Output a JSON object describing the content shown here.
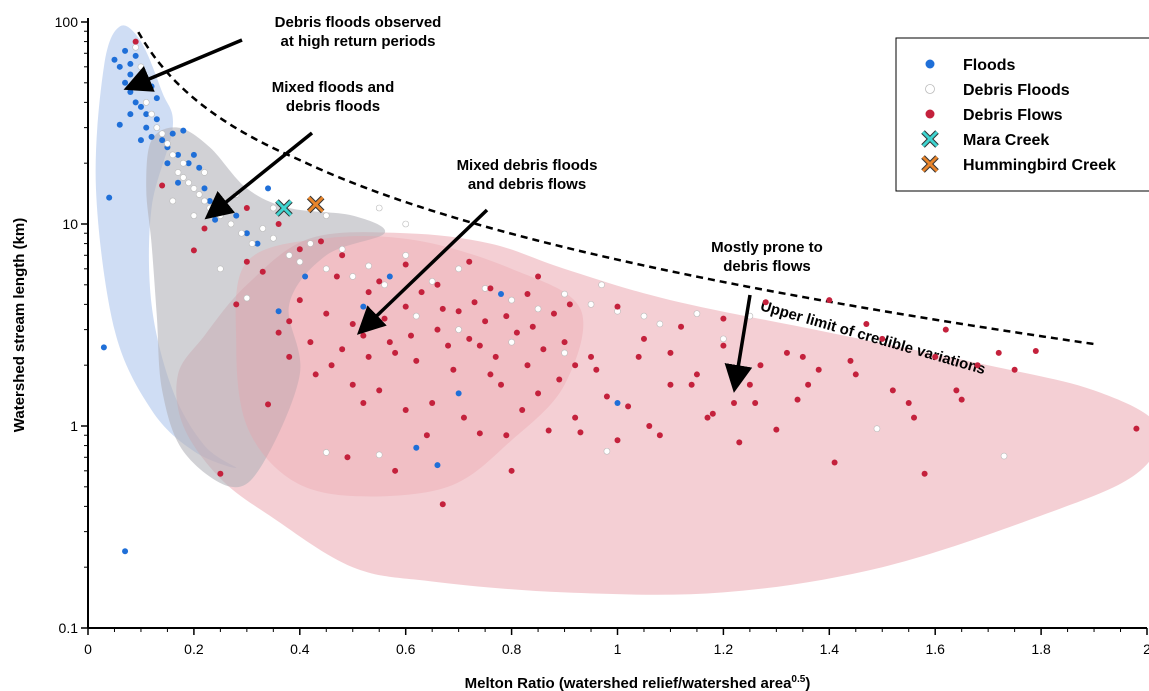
{
  "chart_data": {
    "type": "scatter",
    "xlabel": "Melton Ratio (watershed relief/watershed area",
    "xlabel_sup": "0.5",
    "xlabel_end": ")",
    "ylabel": "Watershed stream length (km)",
    "xlim": [
      0,
      2
    ],
    "ylim": [
      0.1,
      100
    ],
    "y_scale": "log",
    "x_ticks": [
      0,
      0.2,
      0.4,
      0.6,
      0.8,
      1,
      1.2,
      1.4,
      1.6,
      1.8,
      2
    ],
    "x_tick_labels": [
      "0",
      "0.2",
      "0.4",
      "0.6",
      "0.8",
      "1",
      "1.2",
      "1.4",
      "1.6",
      "1.8",
      "2"
    ],
    "y_ticks": [
      0.1,
      1,
      10,
      100
    ],
    "y_tick_labels": [
      "0.1",
      "1",
      "10",
      "100"
    ],
    "grid": false,
    "legend_position": "top-right",
    "legend": [
      {
        "label": "Floods",
        "marker": "dot",
        "color": "#1f6fd8"
      },
      {
        "label": "Debris Floods",
        "marker": "dot",
        "color": "#ffffff"
      },
      {
        "label": "Debris Flows",
        "marker": "dot",
        "color": "#c4213c"
      },
      {
        "label": "Mara Creek",
        "marker": "x",
        "color": "#3fd4d0"
      },
      {
        "label": "Hummingbird Creek",
        "marker": "x",
        "color": "#e8842a"
      }
    ],
    "series": [
      {
        "name": "Floods",
        "color": "#1f6fd8",
        "points": [
          [
            0.03,
            2.45
          ],
          [
            0.04,
            13.5
          ],
          [
            0.07,
            0.24
          ],
          [
            0.05,
            65
          ],
          [
            0.06,
            60
          ],
          [
            0.07,
            50
          ],
          [
            0.07,
            72
          ],
          [
            0.08,
            55
          ],
          [
            0.08,
            45
          ],
          [
            0.09,
            40
          ],
          [
            0.1,
            38
          ],
          [
            0.11,
            35
          ],
          [
            0.08,
            62
          ],
          [
            0.09,
            68
          ],
          [
            0.1,
            52
          ],
          [
            0.12,
            48
          ],
          [
            0.13,
            42
          ],
          [
            0.11,
            30
          ],
          [
            0.12,
            27
          ],
          [
            0.14,
            26
          ],
          [
            0.15,
            24
          ],
          [
            0.16,
            28
          ],
          [
            0.17,
            22
          ],
          [
            0.18,
            29
          ],
          [
            0.19,
            20
          ],
          [
            0.2,
            22
          ],
          [
            0.1,
            26
          ],
          [
            0.13,
            33
          ],
          [
            0.15,
            20
          ],
          [
            0.17,
            16
          ],
          [
            0.21,
            19
          ],
          [
            0.22,
            15
          ],
          [
            0.23,
            13
          ],
          [
            0.24,
            10.5
          ],
          [
            0.26,
            12
          ],
          [
            0.28,
            11
          ],
          [
            0.3,
            9
          ],
          [
            0.32,
            8
          ],
          [
            0.34,
            15
          ],
          [
            0.36,
            3.7
          ],
          [
            0.41,
            5.5
          ],
          [
            0.52,
            3.9
          ],
          [
            0.57,
            5.5
          ],
          [
            0.62,
            0.78
          ],
          [
            0.66,
            0.64
          ],
          [
            0.7,
            1.45
          ],
          [
            0.78,
            4.5
          ],
          [
            1.0,
            1.3
          ],
          [
            0.06,
            31
          ],
          [
            0.08,
            35
          ]
        ]
      },
      {
        "name": "Debris Floods",
        "color": "#ffffff",
        "points": [
          [
            0.09,
            75
          ],
          [
            0.1,
            60
          ],
          [
            0.11,
            40
          ],
          [
            0.12,
            35
          ],
          [
            0.13,
            30
          ],
          [
            0.14,
            28
          ],
          [
            0.15,
            25
          ],
          [
            0.16,
            22
          ],
          [
            0.17,
            18
          ],
          [
            0.18,
            17
          ],
          [
            0.19,
            16
          ],
          [
            0.2,
            15
          ],
          [
            0.21,
            14
          ],
          [
            0.22,
            13
          ],
          [
            0.23,
            12
          ],
          [
            0.25,
            11
          ],
          [
            0.27,
            10
          ],
          [
            0.29,
            9
          ],
          [
            0.31,
            8
          ],
          [
            0.33,
            9.5
          ],
          [
            0.35,
            8.5
          ],
          [
            0.38,
            7
          ],
          [
            0.4,
            6.5
          ],
          [
            0.42,
            8
          ],
          [
            0.45,
            6
          ],
          [
            0.48,
            7.5
          ],
          [
            0.5,
            5.5
          ],
          [
            0.53,
            6.2
          ],
          [
            0.56,
            5
          ],
          [
            0.6,
            7
          ],
          [
            0.65,
            5.2
          ],
          [
            0.7,
            6
          ],
          [
            0.75,
            4.8
          ],
          [
            0.8,
            4.2
          ],
          [
            0.85,
            3.8
          ],
          [
            0.9,
            4.5
          ],
          [
            0.95,
            4
          ],
          [
            1.0,
            3.7
          ],
          [
            1.05,
            3.5
          ],
          [
            1.15,
            3.6
          ],
          [
            1.25,
            3.5
          ],
          [
            0.3,
            4.3
          ],
          [
            0.25,
            6
          ],
          [
            0.22,
            18
          ],
          [
            0.18,
            20
          ],
          [
            0.16,
            13
          ],
          [
            0.2,
            11
          ],
          [
            0.28,
            14
          ],
          [
            0.35,
            12
          ],
          [
            0.45,
            11
          ],
          [
            0.55,
            12
          ],
          [
            0.6,
            10
          ],
          [
            0.62,
            3.5
          ],
          [
            0.7,
            3
          ],
          [
            0.8,
            2.6
          ],
          [
            0.9,
            2.3
          ],
          [
            0.97,
            5
          ],
          [
            1.08,
            3.2
          ],
          [
            1.2,
            2.7
          ],
          [
            1.49,
            0.97
          ],
          [
            1.73,
            0.71
          ],
          [
            0.55,
            0.72
          ],
          [
            0.45,
            0.74
          ],
          [
            0.98,
            0.75
          ]
        ]
      },
      {
        "name": "Debris Flows",
        "color": "#c4213c",
        "points": [
          [
            0.09,
            80
          ],
          [
            0.14,
            15.5
          ],
          [
            0.2,
            7.4
          ],
          [
            0.22,
            9.5
          ],
          [
            0.25,
            0.58
          ],
          [
            0.28,
            4
          ],
          [
            0.3,
            6.5
          ],
          [
            0.34,
            1.28
          ],
          [
            0.36,
            2.9
          ],
          [
            0.38,
            3.3
          ],
          [
            0.4,
            4.2
          ],
          [
            0.42,
            2.6
          ],
          [
            0.45,
            3.6
          ],
          [
            0.47,
            5.5
          ],
          [
            0.48,
            2.4
          ],
          [
            0.5,
            3.2
          ],
          [
            0.52,
            2.8
          ],
          [
            0.53,
            4.6
          ],
          [
            0.55,
            1.5
          ],
          [
            0.56,
            3.4
          ],
          [
            0.58,
            2.3
          ],
          [
            0.6,
            3.9
          ],
          [
            0.62,
            2.1
          ],
          [
            0.63,
            4.6
          ],
          [
            0.65,
            1.3
          ],
          [
            0.66,
            3.0
          ],
          [
            0.67,
            0.41
          ],
          [
            0.68,
            2.5
          ],
          [
            0.7,
            3.7
          ],
          [
            0.71,
            1.1
          ],
          [
            0.72,
            2.7
          ],
          [
            0.73,
            4.1
          ],
          [
            0.74,
            0.92
          ],
          [
            0.75,
            3.3
          ],
          [
            0.76,
            1.8
          ],
          [
            0.77,
            2.2
          ],
          [
            0.78,
            1.6
          ],
          [
            0.79,
            3.5
          ],
          [
            0.8,
            0.6
          ],
          [
            0.81,
            2.9
          ],
          [
            0.82,
            1.2
          ],
          [
            0.83,
            2.0
          ],
          [
            0.84,
            3.1
          ],
          [
            0.85,
            1.45
          ],
          [
            0.86,
            2.4
          ],
          [
            0.87,
            0.95
          ],
          [
            0.88,
            3.6
          ],
          [
            0.89,
            1.7
          ],
          [
            0.9,
            2.6
          ],
          [
            0.91,
            4.0
          ],
          [
            0.92,
            1.1
          ],
          [
            0.93,
            0.93
          ],
          [
            0.95,
            2.2
          ],
          [
            0.96,
            1.9
          ],
          [
            0.98,
            1.4
          ],
          [
            1.0,
            3.9
          ],
          [
            1.02,
            1.25
          ],
          [
            1.05,
            2.7
          ],
          [
            1.06,
            1.0
          ],
          [
            1.08,
            0.9
          ],
          [
            1.1,
            2.3
          ],
          [
            1.12,
            3.1
          ],
          [
            1.14,
            1.6
          ],
          [
            1.15,
            1.8
          ],
          [
            1.17,
            1.1
          ],
          [
            1.2,
            2.5
          ],
          [
            1.22,
            1.3
          ],
          [
            1.23,
            0.83
          ],
          [
            1.25,
            1.6
          ],
          [
            1.27,
            2.0
          ],
          [
            1.28,
            4.1
          ],
          [
            1.3,
            0.96
          ],
          [
            1.32,
            2.3
          ],
          [
            1.34,
            1.35
          ],
          [
            1.36,
            1.6
          ],
          [
            1.38,
            1.9
          ],
          [
            1.4,
            4.2
          ],
          [
            1.41,
            0.66
          ],
          [
            1.44,
            2.1
          ],
          [
            1.47,
            3.2
          ],
          [
            1.5,
            2.7
          ],
          [
            1.52,
            1.5
          ],
          [
            1.56,
            1.1
          ],
          [
            1.58,
            0.58
          ],
          [
            1.6,
            2.2
          ],
          [
            1.62,
            3.0
          ],
          [
            1.64,
            1.5
          ],
          [
            1.65,
            1.35
          ],
          [
            1.68,
            2.0
          ],
          [
            1.72,
            2.3
          ],
          [
            1.75,
            1.9
          ],
          [
            1.79,
            2.35
          ],
          [
            1.98,
            0.97
          ],
          [
            0.57,
            2.6
          ],
          [
            0.6,
            1.2
          ],
          [
            0.64,
            0.9
          ],
          [
            0.69,
            1.9
          ],
          [
            0.58,
            0.6
          ],
          [
            0.52,
            1.3
          ],
          [
            0.49,
            0.7
          ],
          [
            0.55,
            5.2
          ],
          [
            0.48,
            7
          ],
          [
            0.44,
            8.2
          ],
          [
            0.6,
            6.3
          ],
          [
            0.66,
            5
          ],
          [
            0.72,
            6.5
          ],
          [
            0.76,
            4.8
          ],
          [
            0.85,
            5.5
          ],
          [
            0.4,
            7.5
          ],
          [
            0.36,
            10
          ],
          [
            0.3,
            12
          ],
          [
            0.33,
            5.8
          ],
          [
            1.2,
            3.4
          ],
          [
            0.38,
            2.2
          ],
          [
            0.43,
            1.8
          ],
          [
            0.46,
            2.0
          ],
          [
            0.5,
            1.6
          ],
          [
            0.53,
            2.2
          ],
          [
            0.61,
            2.8
          ],
          [
            0.67,
            3.8
          ],
          [
            0.74,
            2.5
          ],
          [
            0.79,
            0.9
          ],
          [
            0.83,
            4.5
          ],
          [
            0.92,
            2.0
          ],
          [
            1.0,
            0.85
          ],
          [
            1.04,
            2.2
          ],
          [
            1.1,
            1.6
          ],
          [
            1.18,
            1.15
          ],
          [
            1.26,
            1.3
          ],
          [
            1.35,
            2.2
          ],
          [
            1.45,
            1.8
          ],
          [
            1.55,
            1.3
          ]
        ]
      },
      {
        "name": "Mara Creek",
        "color": "#3fd4d0",
        "marker": "x",
        "points": [
          [
            0.37,
            12
          ]
        ]
      },
      {
        "name": "Hummingbird Creek",
        "color": "#e8842a",
        "marker": "x",
        "points": [
          [
            0.43,
            12.5
          ]
        ]
      }
    ],
    "annotations": [
      {
        "lines": [
          "Debris floods observed",
          "at high return periods"
        ]
      },
      {
        "lines": [
          "Mixed floods and",
          "debris floods"
        ]
      },
      {
        "lines": [
          "Mixed debris floods",
          "and debris flows"
        ]
      },
      {
        "lines": [
          "Mostly prone to",
          "debris flows"
        ]
      }
    ],
    "upper_limit_label": "Upper limit of credible variations",
    "region_colors": {
      "floods": "#c3d5f1",
      "debris_floods": "#b3b3b9",
      "debris_flows": "#eaa0aa"
    }
  }
}
